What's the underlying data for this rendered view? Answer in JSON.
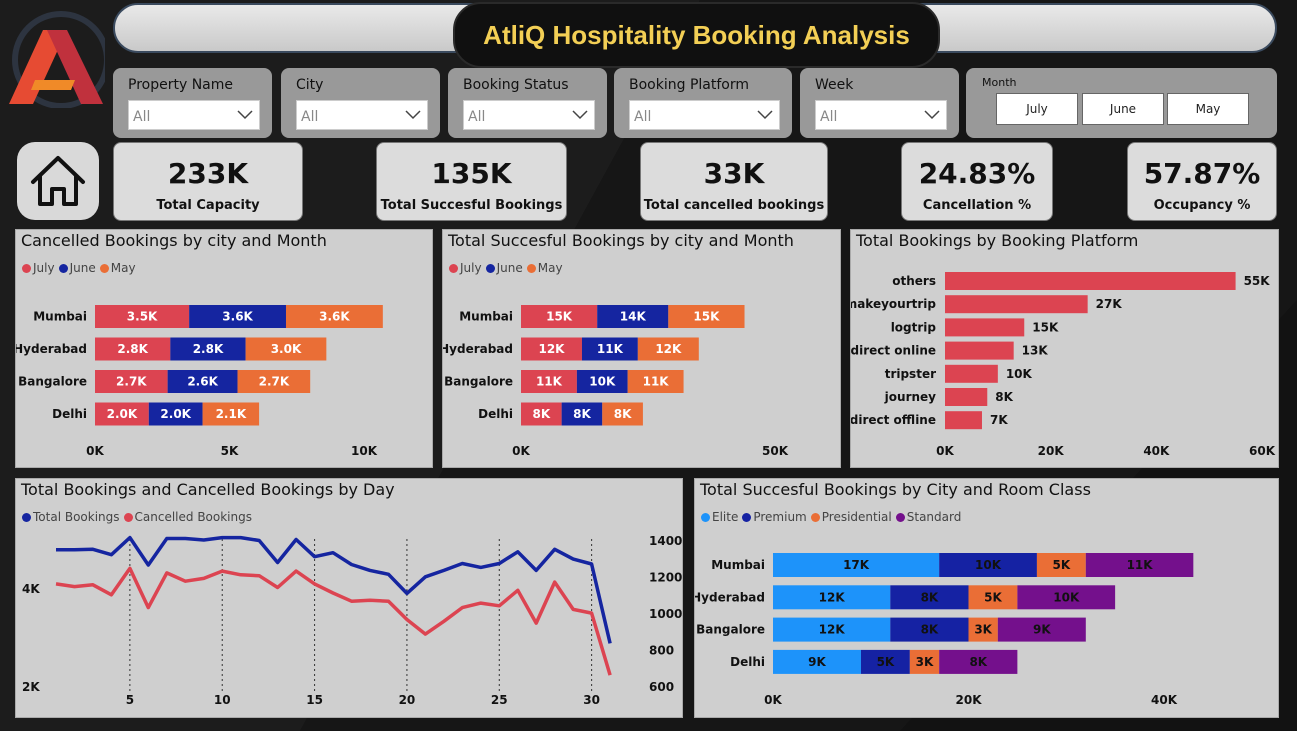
{
  "title": "AtliQ Hospitality Booking Analysis",
  "colors": {
    "july": "#dc4451",
    "june": "#1525a0",
    "may": "#ea6e36",
    "elite": "#1d93fa",
    "premium": "#1522a3",
    "presidential": "#ea6e36",
    "standard": "#74108c",
    "platform": "#dc4451",
    "total_line": "#1525a0",
    "cancel_line": "#dc4451",
    "title_text": "#f3cf55"
  },
  "slicers": [
    {
      "label": "Property Name",
      "value": "All"
    },
    {
      "label": "City",
      "value": "All"
    },
    {
      "label": "Booking Status",
      "value": "All"
    },
    {
      "label": "Booking Platform",
      "value": "All"
    },
    {
      "label": "Week",
      "value": "All"
    }
  ],
  "month_slicer": {
    "label": "Month",
    "options": [
      "July",
      "June",
      "May"
    ]
  },
  "kpis": [
    {
      "value": "233K",
      "label": "Total Capacity"
    },
    {
      "value": "135K",
      "label": "Total Succesful Bookings"
    },
    {
      "value": "33K",
      "label": "Total cancelled bookings"
    },
    {
      "value": "24.83%",
      "label": "Cancellation %"
    },
    {
      "value": "57.87%",
      "label": "Occupancy %"
    }
  ],
  "icons": {
    "logo": "atliq-logo",
    "home": "home-icon",
    "chevron": "chevron-down-icon"
  },
  "chart_data": [
    {
      "type": "bar",
      "orientation": "horizontal-stacked",
      "title": "Cancelled Bookings by city and Month",
      "categories": [
        "Mumbai",
        "Hyderabad",
        "Bangalore",
        "Delhi"
      ],
      "series": [
        {
          "name": "July",
          "values": [
            3500,
            2800,
            2700,
            2000
          ],
          "labels": [
            "3.5K",
            "2.8K",
            "2.7K",
            "2.0K"
          ]
        },
        {
          "name": "June",
          "values": [
            3600,
            2800,
            2600,
            2000
          ],
          "labels": [
            "3.6K",
            "2.8K",
            "2.6K",
            "2.0K"
          ]
        },
        {
          "name": "May",
          "values": [
            3600,
            3000,
            2700,
            2100
          ],
          "labels": [
            "3.6K",
            "3.0K",
            "2.7K",
            "2.1K"
          ]
        }
      ],
      "xticks": [
        {
          "value": 0,
          "label": "0K"
        },
        {
          "value": 5000,
          "label": "5K"
        },
        {
          "value": 10000,
          "label": "10K"
        }
      ],
      "xlim": [
        0,
        10000
      ],
      "legend": "top-left"
    },
    {
      "type": "bar",
      "orientation": "horizontal-stacked",
      "title": "Total Succesful Bookings by city and Month",
      "categories": [
        "Mumbai",
        "Hyderabad",
        "Bangalore",
        "Delhi"
      ],
      "series": [
        {
          "name": "July",
          "values": [
            15000,
            12000,
            11000,
            8000
          ],
          "labels": [
            "15K",
            "12K",
            "11K",
            "8K"
          ]
        },
        {
          "name": "June",
          "values": [
            14000,
            11000,
            10000,
            8000
          ],
          "labels": [
            "14K",
            "11K",
            "10K",
            "8K"
          ]
        },
        {
          "name": "May",
          "values": [
            15000,
            12000,
            11000,
            8000
          ],
          "labels": [
            "15K",
            "12K",
            "11K",
            "8K"
          ]
        }
      ],
      "xticks": [
        {
          "value": 0,
          "label": "0K"
        },
        {
          "value": 50000,
          "label": "50K"
        }
      ],
      "xlim": [
        0,
        50000
      ],
      "legend": "top-left"
    },
    {
      "type": "bar",
      "orientation": "horizontal",
      "title": "Total Bookings by Booking Platform",
      "categories": [
        "others",
        "makeyourtrip",
        "logtrip",
        "direct online",
        "tripster",
        "journey",
        "direct offline"
      ],
      "values": [
        55000,
        27000,
        15000,
        13000,
        10000,
        8000,
        7000
      ],
      "labels": [
        "55K",
        "27K",
        "15K",
        "13K",
        "10K",
        "8K",
        "7K"
      ],
      "xticks": [
        {
          "value": 0,
          "label": "0K"
        },
        {
          "value": 20000,
          "label": "20K"
        },
        {
          "value": 40000,
          "label": "40K"
        },
        {
          "value": 60000,
          "label": "60K"
        }
      ],
      "xlim": [
        0,
        60000
      ]
    },
    {
      "type": "line",
      "title": "Total Bookings and Cancelled Bookings by Day",
      "x": [
        1,
        2,
        3,
        4,
        5,
        6,
        7,
        8,
        9,
        10,
        11,
        12,
        13,
        14,
        15,
        16,
        17,
        18,
        19,
        20,
        21,
        22,
        23,
        24,
        25,
        26,
        27,
        28,
        29,
        30,
        31
      ],
      "series": [
        {
          "name": "Total Bookings",
          "axis": "left",
          "values": [
            4800,
            4800,
            4810,
            4700,
            5050,
            4490,
            5030,
            5030,
            5000,
            5050,
            5050,
            4990,
            4540,
            5010,
            4660,
            4740,
            4500,
            4380,
            4300,
            3910,
            4250,
            4380,
            4520,
            4440,
            4520,
            4760,
            4380,
            4810,
            4610,
            4510,
            2890
          ]
        },
        {
          "name": "Cancelled Bookings",
          "axis": "right",
          "values": [
            1165,
            1150,
            1160,
            1105,
            1250,
            1035,
            1225,
            1180,
            1195,
            1235,
            1215,
            1210,
            1145,
            1235,
            1165,
            1115,
            1070,
            1075,
            1070,
            970,
            890,
            960,
            1035,
            1060,
            1045,
            1130,
            950,
            1175,
            1025,
            1005,
            665
          ]
        }
      ],
      "xticks": [
        5,
        10,
        15,
        20,
        25,
        30
      ],
      "yticks_left": [
        {
          "value": 2000,
          "label": "2K"
        },
        {
          "value": 4000,
          "label": "4K"
        }
      ],
      "ylim_left": [
        2000,
        6000
      ],
      "yticks_right": [
        600,
        800,
        1000,
        1200,
        1400
      ],
      "ylim_right": [
        600,
        1400
      ],
      "legend": "top-left"
    },
    {
      "type": "bar",
      "orientation": "horizontal-stacked",
      "title": "Total Succesful Bookings by City and Room Class",
      "categories": [
        "Mumbai",
        "Hyderabad",
        "Bangalore",
        "Delhi"
      ],
      "series": [
        {
          "name": "Elite",
          "values": [
            17000,
            12000,
            12000,
            9000
          ],
          "labels": [
            "17K",
            "12K",
            "12K",
            "9K"
          ]
        },
        {
          "name": "Premium",
          "values": [
            10000,
            8000,
            8000,
            5000
          ],
          "labels": [
            "10K",
            "8K",
            "8K",
            "5K"
          ]
        },
        {
          "name": "Presidential",
          "values": [
            5000,
            5000,
            3000,
            3000
          ],
          "labels": [
            "5K",
            "5K",
            "3K",
            "3K"
          ]
        },
        {
          "name": "Standard",
          "values": [
            11000,
            10000,
            9000,
            8000
          ],
          "labels": [
            "11K",
            "10K",
            "9K",
            "8K"
          ]
        }
      ],
      "xticks": [
        {
          "value": 0,
          "label": "0K"
        },
        {
          "value": 20000,
          "label": "20K"
        },
        {
          "value": 40000,
          "label": "40K"
        }
      ],
      "xlim": [
        0,
        40000
      ],
      "legend": "top-left"
    }
  ]
}
